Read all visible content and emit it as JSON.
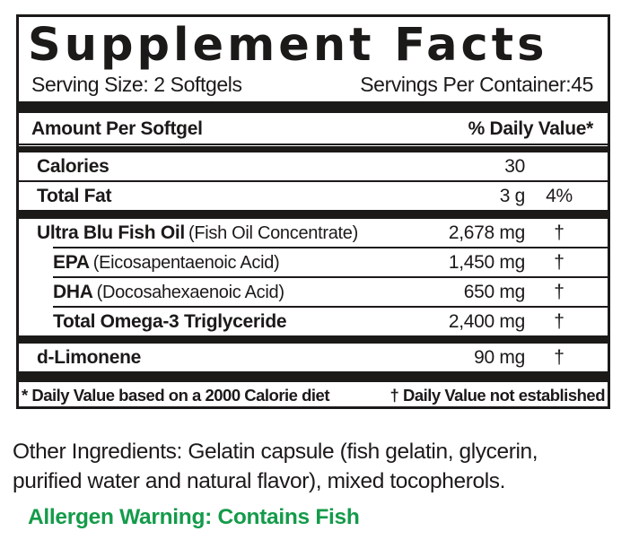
{
  "colors": {
    "text_black": "#1c1a19",
    "allergen_green": "#149b4a"
  },
  "panel": {
    "title": "Supplement Facts",
    "serving_size": "Serving Size: 2 Softgels",
    "servings_per_container": "Servings Per Container:45",
    "column_headers": {
      "amount_per": "Amount Per Softgel",
      "daily_value": "% Daily Value*"
    },
    "rows": [
      {
        "name": "Calories",
        "note": "",
        "amount": "30",
        "dv": ""
      },
      {
        "name": "Total Fat",
        "note": "",
        "amount": "3 g",
        "dv": "4%"
      },
      {
        "name": "Ultra Blu Fish Oil",
        "note": "(Fish Oil Concentrate)",
        "amount": "2,678 mg",
        "dv": "†"
      },
      {
        "name": "EPA",
        "note": "(Eicosapentaenoic Acid)",
        "amount": "1,450 mg",
        "dv": "†"
      },
      {
        "name": "DHA",
        "note": "(Docosahexaenoic Acid)",
        "amount": "650 mg",
        "dv": "†"
      },
      {
        "name": "Total Omega-3 Triglyceride",
        "note": "",
        "amount": "2,400 mg",
        "dv": "†"
      },
      {
        "name": "d-Limonene",
        "note": "",
        "amount": "90 mg",
        "dv": "†"
      }
    ],
    "footnote_left": "* Daily Value based on a 2000 Calorie diet",
    "footnote_right": "† Daily Value not established"
  },
  "other_ingredients": {
    "line1": "Other Ingredients: Gelatin capsule (fish gelatin, glycerin,",
    "line2": "purified water and natural flavor), mixed tocopherols."
  },
  "allergen_warning": "Allergen Warning: Contains Fish"
}
